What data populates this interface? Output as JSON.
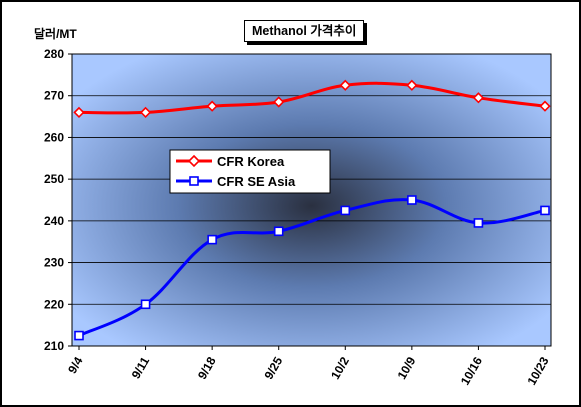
{
  "chart_data": {
    "type": "line",
    "title": "Methanol 가격추이",
    "ylabel": "달러/MT",
    "xlabel": "",
    "categories": [
      "9/4",
      "9/11",
      "9/18",
      "9/25",
      "10/2",
      "10/9",
      "10/16",
      "10/23"
    ],
    "ylim": [
      210,
      280
    ],
    "yticks": [
      210,
      220,
      230,
      240,
      250,
      260,
      270,
      280
    ],
    "grid": true,
    "legend_position": "center-left",
    "series": [
      {
        "name": "CFR Korea",
        "color": "#ff0000",
        "marker": "diamond",
        "values": [
          266,
          266,
          267.5,
          268.5,
          272.5,
          272.5,
          269.5,
          267.5
        ]
      },
      {
        "name": "CFR SE Asia",
        "color": "#0000ff",
        "marker": "square",
        "values": [
          212.5,
          220,
          235.5,
          237.5,
          242.5,
          245,
          239.5,
          242.5
        ]
      }
    ]
  },
  "colors": {
    "plot_center": "#2a3040",
    "plot_edge": "#a9c8ff",
    "grid": "#000000"
  }
}
